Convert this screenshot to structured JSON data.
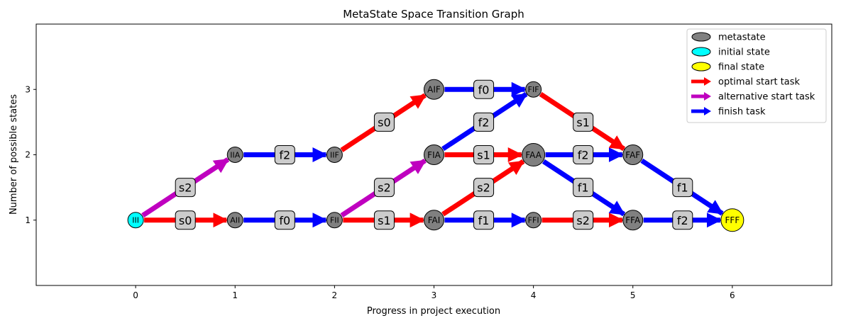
{
  "chart_data": {
    "type": "graph",
    "title": "MetaState Space Transition Graph",
    "xlabel": "Progress in project execution",
    "ylabel": "Number of possible states",
    "xlim": [
      -1,
      7
    ],
    "ylim": [
      0,
      4
    ],
    "xticks": [
      0,
      1,
      2,
      3,
      4,
      5,
      6
    ],
    "yticks": [
      1,
      2,
      3
    ],
    "colors": {
      "metastate": "#808080",
      "initial": "#00ffff",
      "final": "#ffff00",
      "optimal": "#ff0000",
      "alternative": "#bf00bf",
      "finish": "#0000ff",
      "label_box": "#cccccc"
    },
    "nodes": [
      {
        "id": "III",
        "x": 0,
        "y": 1,
        "kind": "initial",
        "size": "small"
      },
      {
        "id": "AII",
        "x": 1,
        "y": 1,
        "kind": "metastate",
        "size": "small"
      },
      {
        "id": "IIA",
        "x": 1,
        "y": 2,
        "kind": "metastate",
        "size": "small"
      },
      {
        "id": "FII",
        "x": 2,
        "y": 1,
        "kind": "metastate",
        "size": "small"
      },
      {
        "id": "IIF",
        "x": 2,
        "y": 2,
        "kind": "metastate",
        "size": "small"
      },
      {
        "id": "FAI",
        "x": 3,
        "y": 1,
        "kind": "metastate",
        "size": "medium"
      },
      {
        "id": "FIA",
        "x": 3,
        "y": 2,
        "kind": "metastate",
        "size": "medium"
      },
      {
        "id": "AIF",
        "x": 3,
        "y": 3,
        "kind": "metastate",
        "size": "medium"
      },
      {
        "id": "FFI",
        "x": 4,
        "y": 1,
        "kind": "metastate",
        "size": "small"
      },
      {
        "id": "FAA",
        "x": 4,
        "y": 2,
        "kind": "metastate",
        "size": "large"
      },
      {
        "id": "FIF",
        "x": 4,
        "y": 3,
        "kind": "metastate",
        "size": "small"
      },
      {
        "id": "FFA",
        "x": 5,
        "y": 1,
        "kind": "metastate",
        "size": "medium"
      },
      {
        "id": "FAF",
        "x": 5,
        "y": 2,
        "kind": "metastate",
        "size": "medium"
      },
      {
        "id": "FFF",
        "x": 6,
        "y": 1,
        "kind": "final",
        "size": "large"
      }
    ],
    "edges": [
      {
        "from": "III",
        "to": "AII",
        "label": "s0",
        "kind": "optimal"
      },
      {
        "from": "III",
        "to": "IIA",
        "label": "s2",
        "kind": "alternative"
      },
      {
        "from": "AII",
        "to": "FII",
        "label": "f0",
        "kind": "finish"
      },
      {
        "from": "IIA",
        "to": "IIF",
        "label": "f2",
        "kind": "finish"
      },
      {
        "from": "FII",
        "to": "FAI",
        "label": "s1",
        "kind": "optimal"
      },
      {
        "from": "FII",
        "to": "FIA",
        "label": "s2",
        "kind": "alternative"
      },
      {
        "from": "IIF",
        "to": "AIF",
        "label": "s0",
        "kind": "optimal"
      },
      {
        "from": "FAI",
        "to": "FFI",
        "label": "f1",
        "kind": "finish"
      },
      {
        "from": "FAI",
        "to": "FAA",
        "label": "s2",
        "kind": "optimal"
      },
      {
        "from": "FIA",
        "to": "FAA",
        "label": "s1",
        "kind": "optimal"
      },
      {
        "from": "FIA",
        "to": "FIF",
        "label": "f2",
        "kind": "finish"
      },
      {
        "from": "AIF",
        "to": "FIF",
        "label": "f0",
        "kind": "finish"
      },
      {
        "from": "FFI",
        "to": "FFA",
        "label": "s2",
        "kind": "optimal"
      },
      {
        "from": "FAA",
        "to": "FFA",
        "label": "f1",
        "kind": "finish"
      },
      {
        "from": "FAA",
        "to": "FAF",
        "label": "f2",
        "kind": "finish"
      },
      {
        "from": "FIF",
        "to": "FAF",
        "label": "s1",
        "kind": "optimal"
      },
      {
        "from": "FFA",
        "to": "FFF",
        "label": "f2",
        "kind": "finish"
      },
      {
        "from": "FAF",
        "to": "FFF",
        "label": "f1",
        "kind": "finish"
      }
    ],
    "legend": {
      "placement": "top-right",
      "entries": [
        {
          "label": "metastate",
          "marker": "ellipse",
          "color_key": "metastate"
        },
        {
          "label": "initial state",
          "marker": "ellipse",
          "color_key": "initial"
        },
        {
          "label": "final state",
          "marker": "ellipse",
          "color_key": "final"
        },
        {
          "label": "optimal start task",
          "marker": "arrow",
          "color_key": "optimal"
        },
        {
          "label": "alternative start task",
          "marker": "arrow",
          "color_key": "alternative"
        },
        {
          "label": "finish task",
          "marker": "arrow",
          "color_key": "finish"
        }
      ]
    }
  }
}
